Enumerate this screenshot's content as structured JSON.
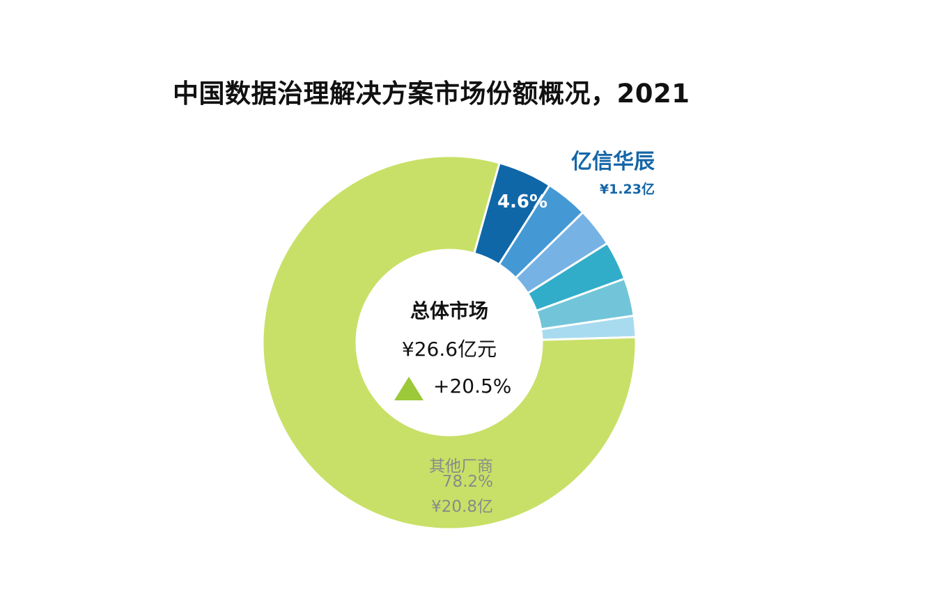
{
  "chart_data": {
    "type": "pie",
    "title": "中国数据治理解决方案市场份额概况，2021",
    "center": {
      "title": "总体市场",
      "total": "¥26.6亿元",
      "growth": "+20.5%"
    },
    "highlight": {
      "name": "亿信华辰",
      "value": "¥1.23亿",
      "percent_label": "4.6%"
    },
    "other": {
      "name": "其他厂商",
      "percent_label": "78.2%",
      "value": "¥20.8亿"
    },
    "slices": [
      {
        "share": 4.6,
        "color": "#0f67a8"
      },
      {
        "share": 3.6,
        "color": "#4499d4"
      },
      {
        "share": 3.3,
        "color": "#76b2e4"
      },
      {
        "share": 3.3,
        "color": "#31adc9"
      },
      {
        "share": 3.2,
        "color": "#72c5d8"
      },
      {
        "share": 1.8,
        "color": "#a8dbef"
      },
      {
        "share": 78.2,
        "color": "#c8e067"
      }
    ],
    "colors": {
      "highlight_text": "#1466a8",
      "other_text": "#8a8a8a",
      "growth_arrow": "#9cc93a"
    }
  }
}
